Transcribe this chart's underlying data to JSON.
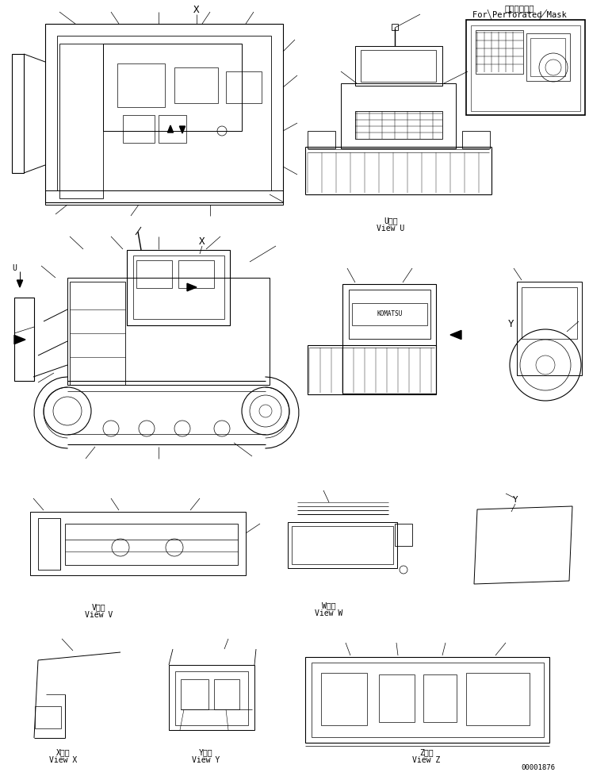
{
  "bg_color": "#ffffff",
  "line_color": "#000000",
  "text_color": "#000000",
  "fig_width": 7.43,
  "fig_height": 9.83,
  "dpi": 100,
  "title_jp": "丸穴マスク用",
  "title_en": "For Perforated Mask",
  "label_U_jp": "U　視",
  "label_U_en": "View U",
  "label_V_jp": "V　視",
  "label_V_en": "View V",
  "label_W_jp": "W　視",
  "label_W_en": "View W",
  "label_X_jp": "X　視",
  "label_X_en": "View X",
  "label_Y_jp": "Y　視",
  "label_Y_en": "View Y",
  "label_Z_jp": "Z　視",
  "label_Z_en": "View Z",
  "part_number": "00001876",
  "font_size_label": 7,
  "font_size_title": 7.5,
  "font_size_part": 6.5,
  "font_name": "monospace"
}
